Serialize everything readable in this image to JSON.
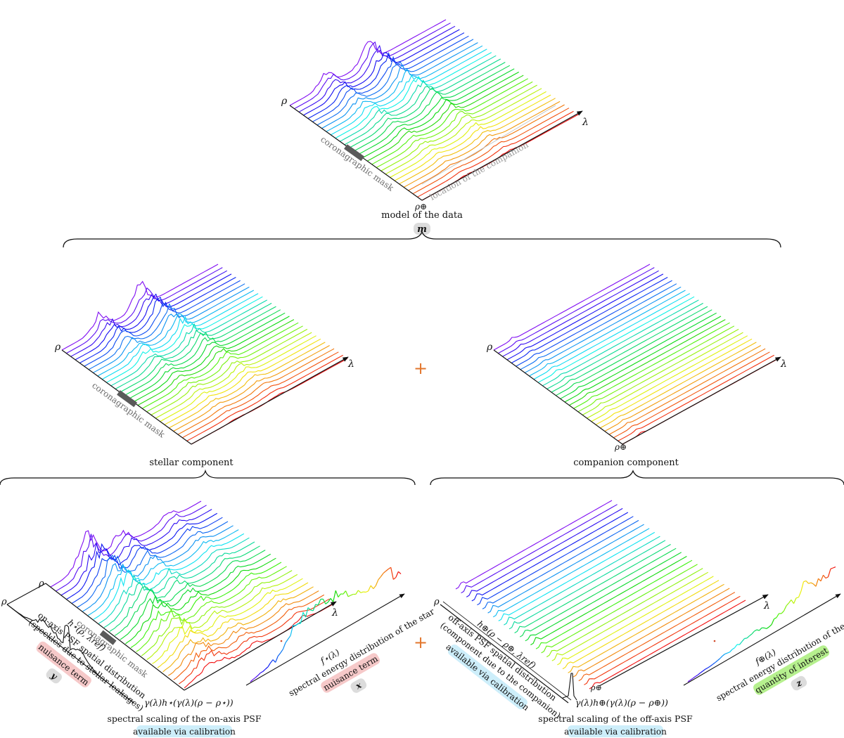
{
  "top": {
    "axis_rho": "ρ",
    "axis_lambda": "λ",
    "rho_companion": "ρ⊕",
    "mask_label": "coronagraphic mask",
    "companion_location_label": "location of the companion",
    "caption": "model of the data",
    "symbol": "m"
  },
  "middle": {
    "plus": "+",
    "stellar": {
      "axis_rho": "ρ",
      "axis_lambda": "λ",
      "mask_label": "coronagraphic mask",
      "caption": "stellar component"
    },
    "companion": {
      "axis_rho": "ρ",
      "axis_lambda": "λ",
      "rho_companion": "ρ⊕",
      "caption": "companion component"
    }
  },
  "bottom": {
    "plus": "+",
    "stellar": {
      "axis_rho": "ρ",
      "axis_rho_inner": "ρ",
      "axis_lambda": "λ",
      "mask_label": "coronagraphic mask",
      "psf_formula": "h⋆(ρ, λref)",
      "psf_desc_line1": "on-axis PSF spatial distribution",
      "psf_desc_line2": "(speckles due to stellar leakages)",
      "psf_badge": "nuisance term",
      "psf_symbol": "y",
      "scaling_formula": "γ(λ)h⋆(γ(λ)(ρ − ρ⋆))",
      "scaling_caption": "spectral scaling of the on-axis PSF",
      "scaling_badge": "available via calibration",
      "sed_formula": "f⋆(λ)",
      "sed_caption": "spectral energy distribution of the star",
      "sed_badge": "nuisance term",
      "sed_symbol": "x"
    },
    "companion": {
      "axis_rho": "ρ",
      "axis_lambda": "λ",
      "rho_companion": "ρ⊕",
      "psf_formula": "h⊕(ρ − ρ⊕, λref)",
      "psf_desc_line1": "off-axis PSF spatial distribution",
      "psf_desc_line2": "(component due to the companion)",
      "psf_badge": "available via calibration",
      "scaling_formula": "γ(λ)h⊕(γ(λ)(ρ − ρ⊕))",
      "scaling_caption": "spectral scaling of the off-axis PSF",
      "scaling_badge": "available via calibration",
      "sed_formula": "f⊕(λ)",
      "sed_caption": "spectral energy distribution of the companion",
      "sed_badge": "quantity of interest",
      "sed_symbol": "z"
    }
  },
  "colors": {
    "badge_red": "#f6c9c9",
    "badge_blue": "#cdeefa",
    "badge_green": "#b6f08e",
    "badge_gray": "#dcdcdc",
    "plus": "#e2762c",
    "mask": "#5a5a5a"
  },
  "chart_data": {
    "type": "line",
    "series_count_top": 30,
    "series_count_stellar": 30,
    "series_count_companion": 30,
    "series_count_bottom": 26,
    "colormap": "rainbow (violet → red)"
  }
}
